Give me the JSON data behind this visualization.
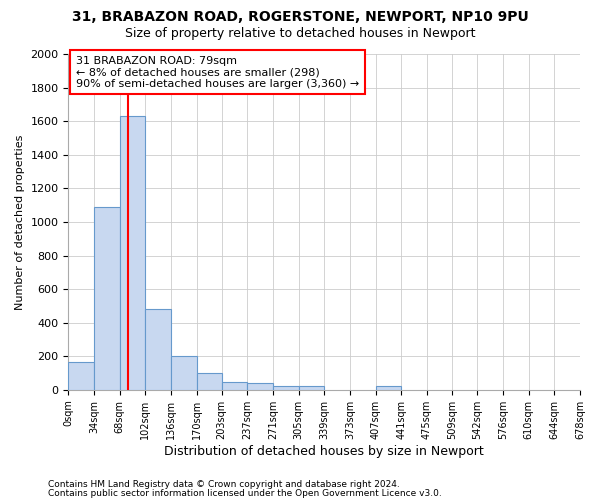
{
  "title1": "31, BRABAZON ROAD, ROGERSTONE, NEWPORT, NP10 9PU",
  "title2": "Size of property relative to detached houses in Newport",
  "xlabel": "Distribution of detached houses by size in Newport",
  "ylabel": "Number of detached properties",
  "footer1": "Contains HM Land Registry data © Crown copyright and database right 2024.",
  "footer2": "Contains public sector information licensed under the Open Government Licence v3.0.",
  "bin_edges": [
    0,
    34,
    68,
    102,
    136,
    170,
    203,
    237,
    271,
    305,
    339,
    373,
    407,
    441,
    475,
    509,
    542,
    576,
    610,
    644,
    678
  ],
  "bar_heights": [
    165,
    1090,
    1630,
    480,
    200,
    100,
    45,
    40,
    25,
    20,
    0,
    0,
    20,
    0,
    0,
    0,
    0,
    0,
    0,
    0
  ],
  "bar_color": "#c8d8f0",
  "bar_edgecolor": "#6699cc",
  "property_size": 79,
  "annotation_text": "31 BRABAZON ROAD: 79sqm\n← 8% of detached houses are smaller (298)\n90% of semi-detached houses are larger (3,360) →",
  "annotation_box_facecolor": "white",
  "annotation_box_edgecolor": "red",
  "vline_color": "red",
  "ylim": [
    0,
    2000
  ],
  "yticks": [
    0,
    200,
    400,
    600,
    800,
    1000,
    1200,
    1400,
    1600,
    1800,
    2000
  ],
  "bg_color": "white",
  "plot_bg_color": "white",
  "grid_color": "#cccccc",
  "title1_fontsize": 10,
  "title2_fontsize": 9,
  "xlabel_fontsize": 9,
  "ylabel_fontsize": 8,
  "footer_fontsize": 6.5
}
